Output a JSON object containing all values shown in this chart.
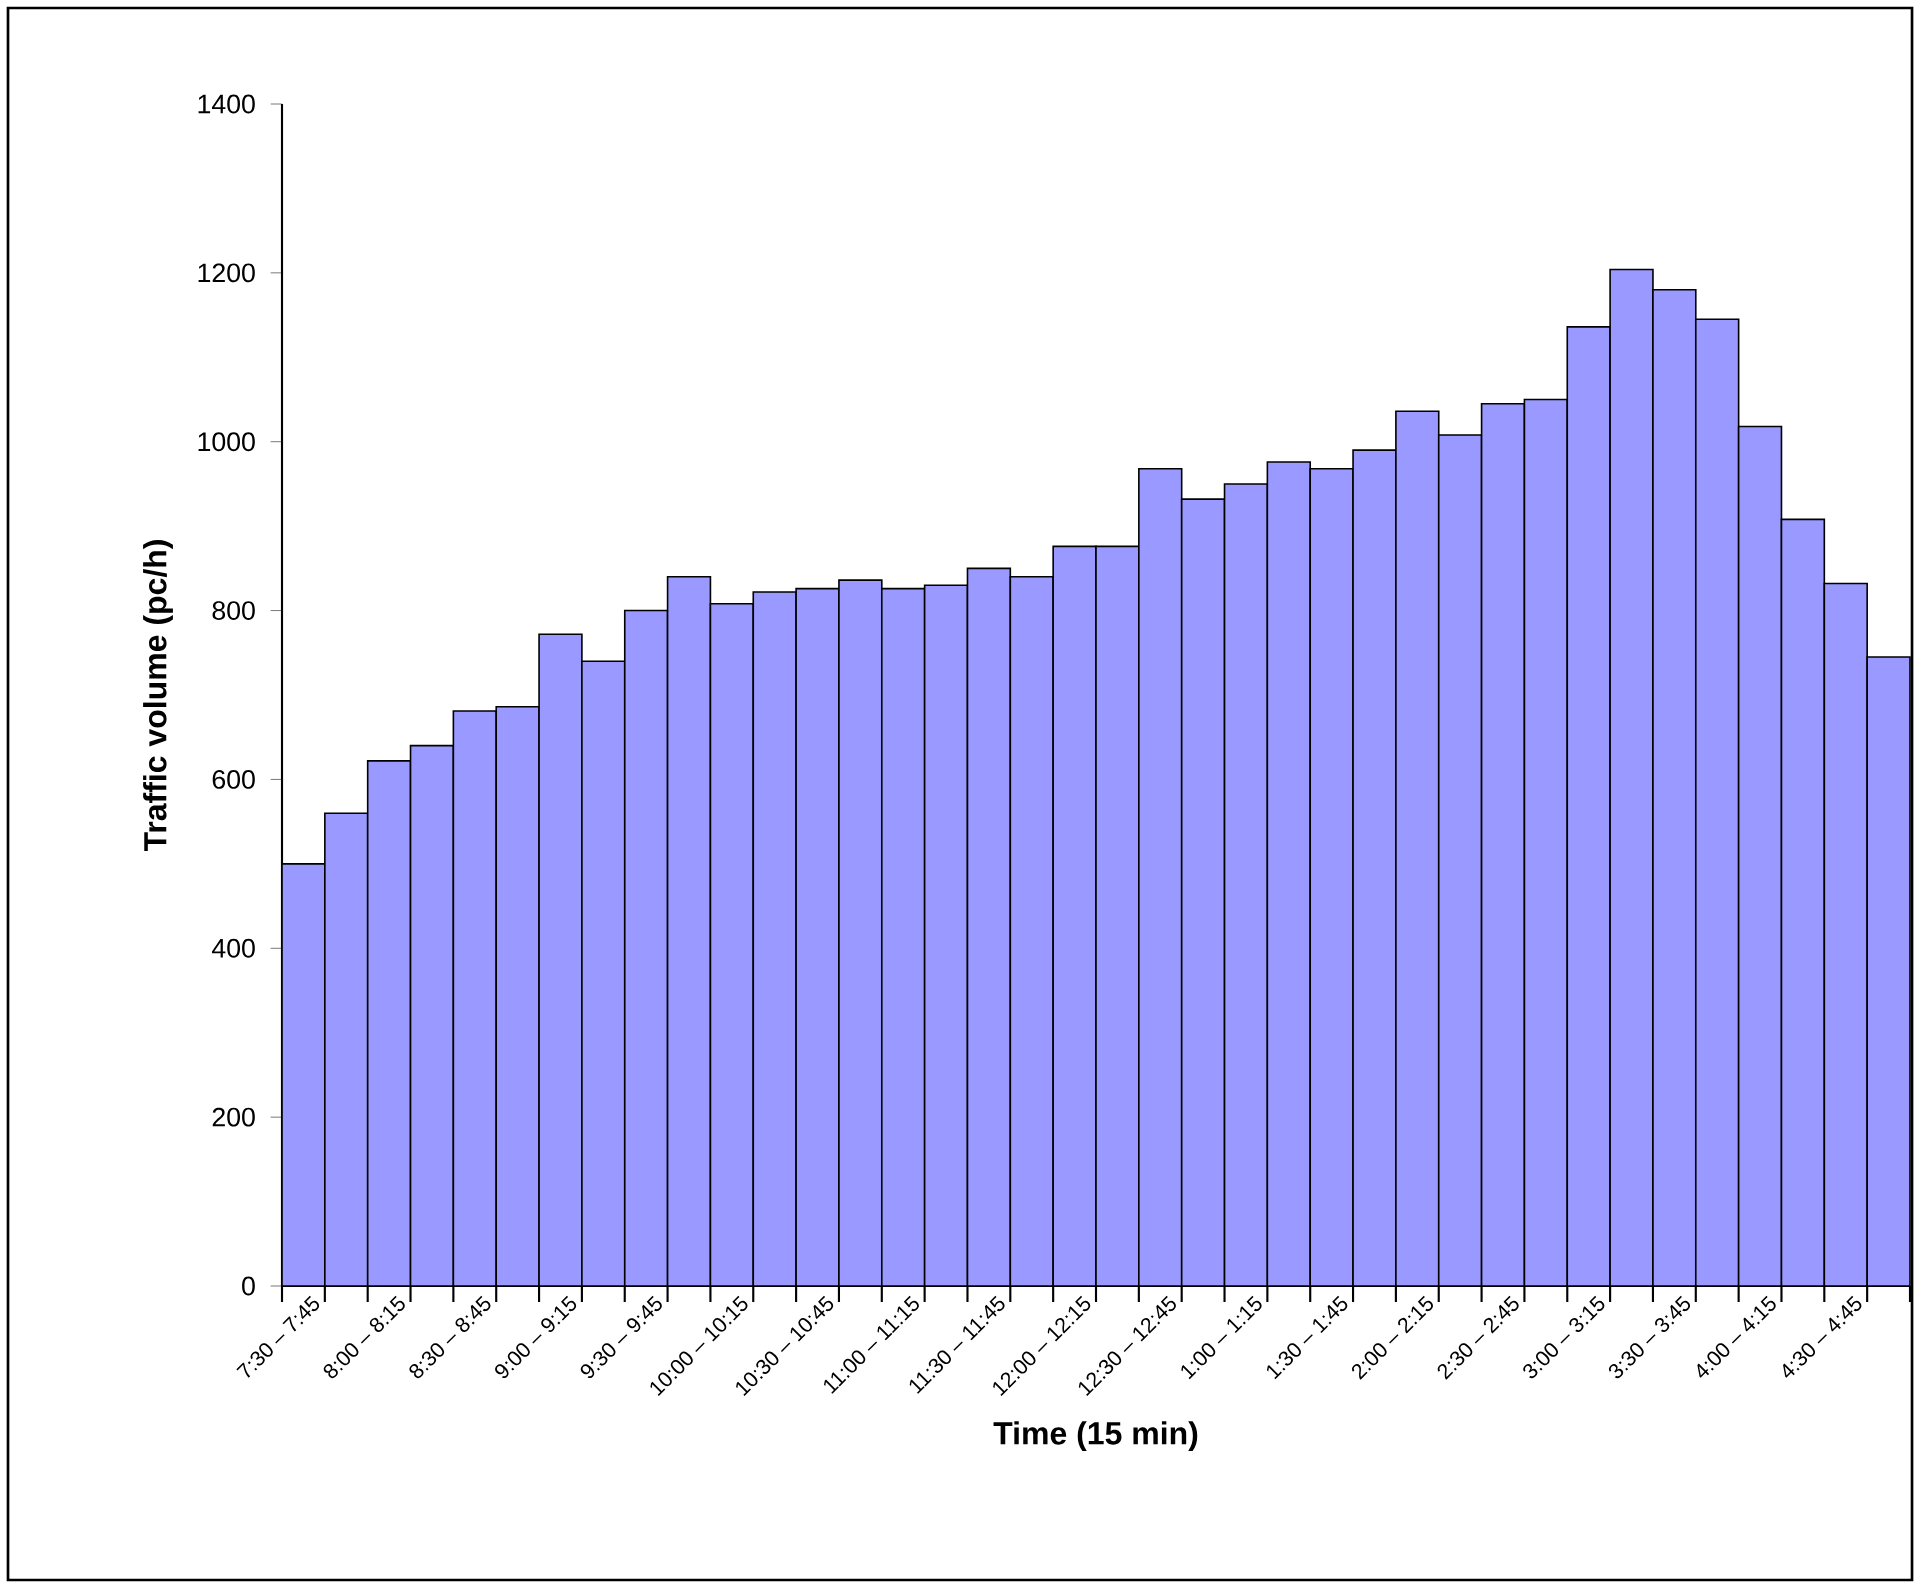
{
  "chart_data": {
    "type": "bar",
    "xlabel": "Time (15 min)",
    "ylabel": "Traffic volume (pc/h)",
    "categories": [
      "7:30 – 7:45",
      null,
      "8:00 – 8:15",
      null,
      "8:30 – 8:45",
      null,
      "9:00 – 9:15",
      null,
      "9:30 – 9:45",
      null,
      "10:00 – 10:15",
      null,
      "10:30 – 10:45",
      null,
      "11:00 – 11:15",
      null,
      "11:30 – 11:45",
      null,
      "12:00 – 12:15",
      null,
      "12:30 – 12:45",
      null,
      "1:00 – 1:15",
      null,
      "1:30 – 1:45",
      null,
      "2:00 – 2:15",
      null,
      "2:30 – 2:45",
      null,
      "3:00 – 3:15",
      null,
      "3:30 – 3:45",
      null,
      "4:00 – 4:15",
      null,
      "4:30 – 4:45",
      null
    ],
    "values": [
      500,
      560,
      622,
      640,
      681,
      686,
      772,
      740,
      800,
      840,
      808,
      822,
      826,
      836,
      826,
      830,
      850,
      840,
      876,
      876,
      968,
      932,
      950,
      976,
      968,
      990,
      1036,
      1008,
      1045,
      1050,
      1136,
      1204,
      1180,
      1145,
      1018,
      908,
      832,
      745
    ],
    "color": "#9999ff",
    "ylim": [
      0,
      1400
    ],
    "yticks": [
      0,
      200,
      400,
      600,
      800,
      1000,
      1200,
      1400
    ],
    "grid": false
  }
}
